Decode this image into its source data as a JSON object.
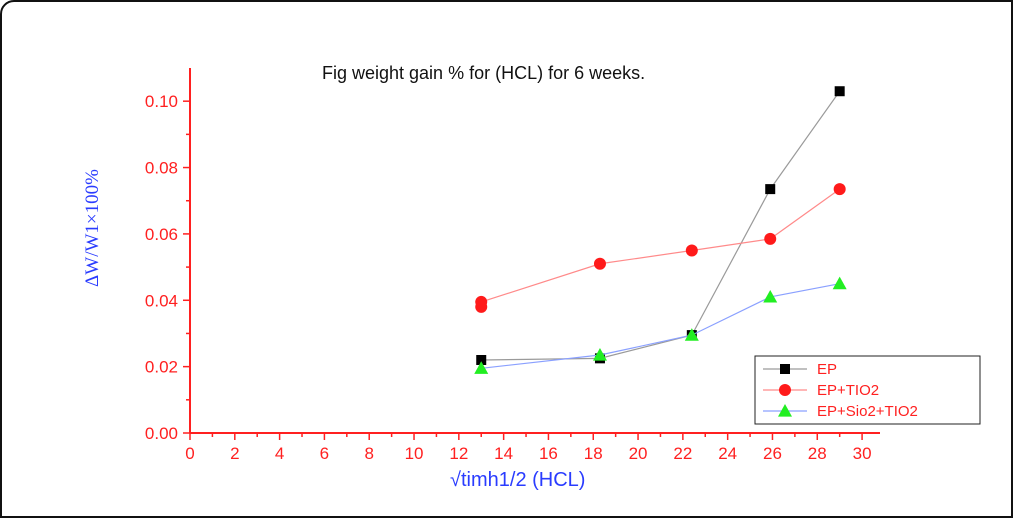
{
  "chart_data": {
    "type": "line",
    "title": "Fig weight gain % for (HCL) for 6 weeks.",
    "xlabel": "√timh1/2 (HCL)",
    "ylabel": "ΔW/W1×100%",
    "xlim": [
      0,
      30.8
    ],
    "ylim": [
      0,
      0.11
    ],
    "xticks": [
      "0",
      "2",
      "4",
      "6",
      "8",
      "10",
      "12",
      "14",
      "16",
      "18",
      "20",
      "22",
      "24",
      "26",
      "28",
      "30"
    ],
    "xtick_values": [
      0,
      2,
      4,
      6,
      8,
      10,
      12,
      14,
      16,
      18,
      20,
      22,
      24,
      26,
      28,
      30
    ],
    "yticks": [
      "0.00",
      "0.02",
      "0.04",
      "0.06",
      "0.08",
      "0.10"
    ],
    "ytick_values": [
      0,
      0.02,
      0.04,
      0.06,
      0.08,
      0.1
    ],
    "grid": false,
    "legend_position": "bottom-right",
    "colors": {
      "axes": "#ff2020",
      "axis_label": "#2a3cff",
      "title": "#111111"
    },
    "series": [
      {
        "name": "EP",
        "color": "#000000",
        "line_color": "#9a9a9a",
        "marker": "square",
        "x": [
          13,
          18.3,
          22.4,
          25.9,
          29
        ],
        "y": [
          0.022,
          0.0225,
          0.0295,
          0.0735,
          0.103
        ]
      },
      {
        "name": "EP+TIO2",
        "color": "#ff1a1a",
        "line_color": "#ff8a8a",
        "marker": "circle",
        "x": [
          13,
          13,
          18.3,
          22.4,
          25.9,
          29
        ],
        "y": [
          0.038,
          0.0395,
          0.051,
          0.055,
          0.0585,
          0.0735
        ]
      },
      {
        "name": "EP+Sio2+TIO2",
        "color": "#22ee22",
        "line_color": "#8aa0ff",
        "marker": "triangle",
        "x": [
          13,
          18.3,
          22.4,
          25.9,
          29
        ],
        "y": [
          0.0195,
          0.0235,
          0.0295,
          0.041,
          0.045
        ]
      }
    ]
  }
}
